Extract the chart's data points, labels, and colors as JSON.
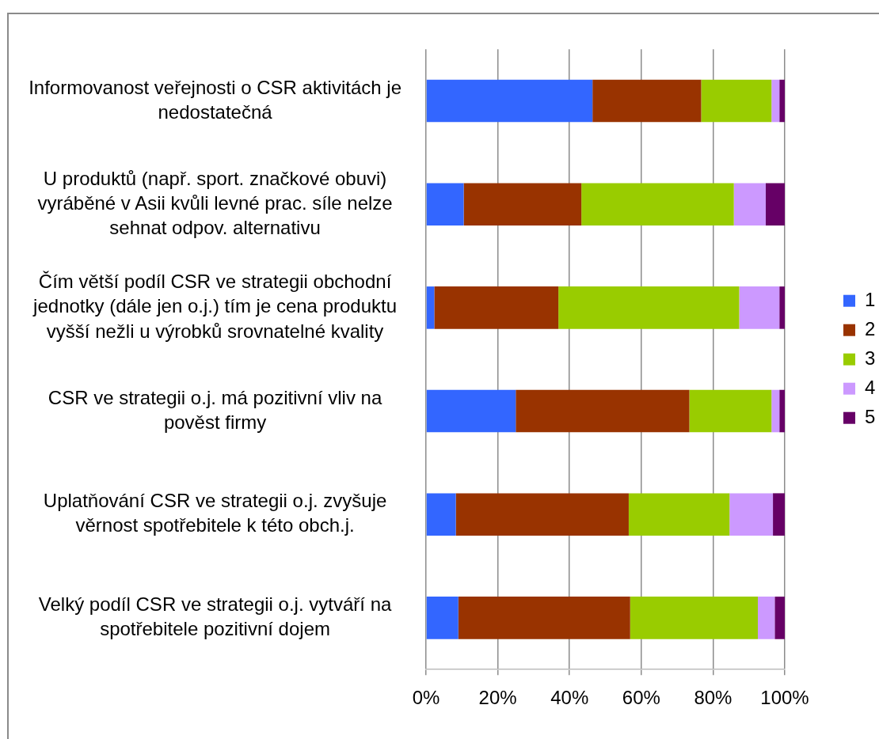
{
  "chart_data": {
    "type": "bar",
    "orientation": "horizontal",
    "stacked": true,
    "categories": [
      "Informovanost veřejnosti o CSR aktivitách je nedostatečná",
      "U produktů (např. sport. značkové obuvi) vyráběné v Asii kvůli levné prac. síle nelze sehnat odpov. alternativu",
      "Čím větší podíl CSR ve strategii obchodní jednotky (dále jen o.j.) tím je cena produktu vyšší nežli u výrobků srovnatelné kvality",
      "CSR ve strategii o.j. má pozitivní vliv na pověst firmy",
      "Uplatňování CSR ve strategii o.j. zvyšuje věrnost spotřebitele k této obch.j.",
      "Velký podíl CSR ve strategii o.j. vytváří na spotřebitele pozitivní dojem"
    ],
    "series": [
      {
        "name": "1",
        "color": "#3366ff",
        "values": [
          46.4,
          10.5,
          2.3,
          25.0,
          8.3,
          9.0
        ]
      },
      {
        "name": "2",
        "color": "#993300",
        "values": [
          30.3,
          32.8,
          34.6,
          48.4,
          48.2,
          47.9
        ]
      },
      {
        "name": "3",
        "color": "#99cc00",
        "values": [
          19.6,
          42.5,
          50.4,
          22.9,
          28.1,
          35.6
        ]
      },
      {
        "name": "4",
        "color": "#cc99ff",
        "values": [
          2.2,
          8.9,
          11.2,
          2.2,
          12.1,
          4.7
        ]
      },
      {
        "name": "5",
        "color": "#660066",
        "values": [
          1.5,
          5.3,
          1.5,
          1.5,
          3.3,
          2.8
        ]
      }
    ],
    "xlim": [
      0,
      100
    ],
    "xticks": [
      {
        "value": 0,
        "label": "0%"
      },
      {
        "value": 20,
        "label": "20%"
      },
      {
        "value": 40,
        "label": "40%"
      },
      {
        "value": 60,
        "label": "60%"
      },
      {
        "value": 80,
        "label": "80%"
      },
      {
        "value": 100,
        "label": "100%"
      }
    ],
    "grid": "x",
    "legend": "right"
  }
}
